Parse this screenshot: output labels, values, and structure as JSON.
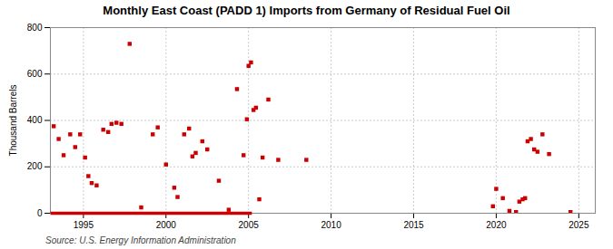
{
  "chart_data": {
    "type": "scatter",
    "title": "Monthly East Coast (PADD 1) Imports from Germany of Residual Fuel Oil",
    "ylabel": "Thousand Barrels",
    "source": "Source: U.S. Energy Information Administration",
    "xlim": [
      1993.0,
      2026.0
    ],
    "ylim": [
      0,
      800
    ],
    "xticks": [
      1995,
      2000,
      2005,
      2010,
      2015,
      2020,
      2025
    ],
    "yticks": [
      0,
      200,
      400,
      600,
      800
    ],
    "grid": true,
    "series": [
      {
        "type": "scatter",
        "color": "#cc0000",
        "marker": "square",
        "x": [
          1993.2,
          1993.5,
          1993.8,
          1994.2,
          1994.5,
          1994.8,
          1995.1,
          1995.3,
          1995.5,
          1995.8,
          1996.2,
          1996.5,
          1996.7,
          1997.0,
          1997.3,
          1997.8,
          1998.5,
          1999.2,
          1999.5,
          2000.0,
          2000.5,
          2000.7,
          2001.1,
          2001.4,
          2001.6,
          2001.8,
          2002.2,
          2002.5,
          2003.2,
          2003.8,
          2004.3,
          2004.7,
          2004.9,
          2005.0,
          2005.15,
          2005.3,
          2005.45,
          2005.65,
          2005.85,
          2006.2,
          2006.8,
          2008.5,
          2019.8,
          2020.0,
          2020.4,
          2020.8,
          2021.2,
          2021.4,
          2021.6,
          2021.75,
          2021.9,
          2022.1,
          2022.3,
          2022.5,
          2022.8,
          2023.2,
          2024.5
        ],
        "values": [
          375,
          320,
          250,
          340,
          285,
          340,
          240,
          160,
          130,
          120,
          360,
          350,
          385,
          390,
          385,
          730,
          25,
          340,
          370,
          210,
          110,
          70,
          340,
          365,
          245,
          260,
          310,
          275,
          140,
          15,
          535,
          250,
          405,
          635,
          650,
          445,
          455,
          60,
          240,
          490,
          230,
          230,
          30,
          105,
          65,
          10,
          5,
          50,
          60,
          65,
          310,
          320,
          275,
          265,
          340,
          255,
          5
        ]
      },
      {
        "type": "line",
        "color": "#cc0000",
        "line_style": "solid",
        "x": [
          1993.0,
          2005.2
        ],
        "values": [
          0,
          0
        ]
      }
    ]
  }
}
